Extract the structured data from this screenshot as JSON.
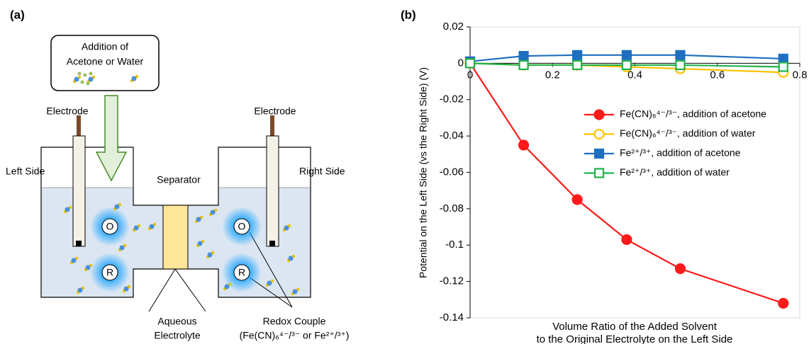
{
  "diagram": {
    "panel_label": "(a)",
    "addition_box": [
      "Addition of",
      "Acetone or Water"
    ],
    "electrode_left": "Electrode",
    "electrode_right": "Electrode",
    "left_side": "Left Side",
    "right_side": "Right Side",
    "separator": "Separator",
    "electrolyte": [
      "Aqueous",
      "Electrolyte"
    ],
    "redox": [
      "Redox Couple",
      "(Fe(CN)₆⁴⁻/³⁻ or Fe²⁺/³⁺)"
    ],
    "oxidized": "O",
    "reduced": "R"
  },
  "chart_data": {
    "type": "line",
    "panel_label": "(b)",
    "y_label": "Potential on the Left Side (vs the Right Side) (V)",
    "x_label": [
      "Volume Ratio of the Added Solvent",
      "to the Original Electrolyte on the Left Side"
    ],
    "x": [
      0,
      0.13,
      0.26,
      0.38,
      0.51,
      0.76
    ],
    "xlim": [
      0,
      0.8
    ],
    "xticks": [
      0,
      0.2,
      0.4,
      0.6,
      0.8
    ],
    "ylim": [
      -0.14,
      0.02
    ],
    "yticks": [
      0.02,
      0,
      -0.02,
      -0.04,
      -0.06,
      -0.08,
      -0.1,
      -0.12,
      -0.14
    ],
    "series": [
      {
        "name": "Fe(CN)₆⁴⁻/³⁻, addition of acetone",
        "color": "#ff1a1a",
        "marker": "circle",
        "filled": true,
        "values": [
          0,
          -0.045,
          -0.075,
          -0.097,
          -0.113,
          -0.132
        ]
      },
      {
        "name": "Fe(CN)₆⁴⁻/³⁻, addition of water",
        "color": "#ffc000",
        "marker": "circle",
        "filled": false,
        "values": [
          0,
          -0.001,
          -0.001,
          -0.002,
          -0.003,
          -0.005
        ]
      },
      {
        "name": "Fe²⁺/³⁺, addition of acetone",
        "color": "#1f6fc0",
        "marker": "square",
        "filled": true,
        "values": [
          0.001,
          0.004,
          0.0045,
          0.0045,
          0.0045,
          0.0025
        ]
      },
      {
        "name": "Fe²⁺/³⁺, addition of water",
        "color": "#22b14c",
        "marker": "square",
        "filled": false,
        "values": [
          0,
          -0.001,
          -0.001,
          -0.001,
          -0.001,
          -0.002
        ]
      }
    ]
  }
}
